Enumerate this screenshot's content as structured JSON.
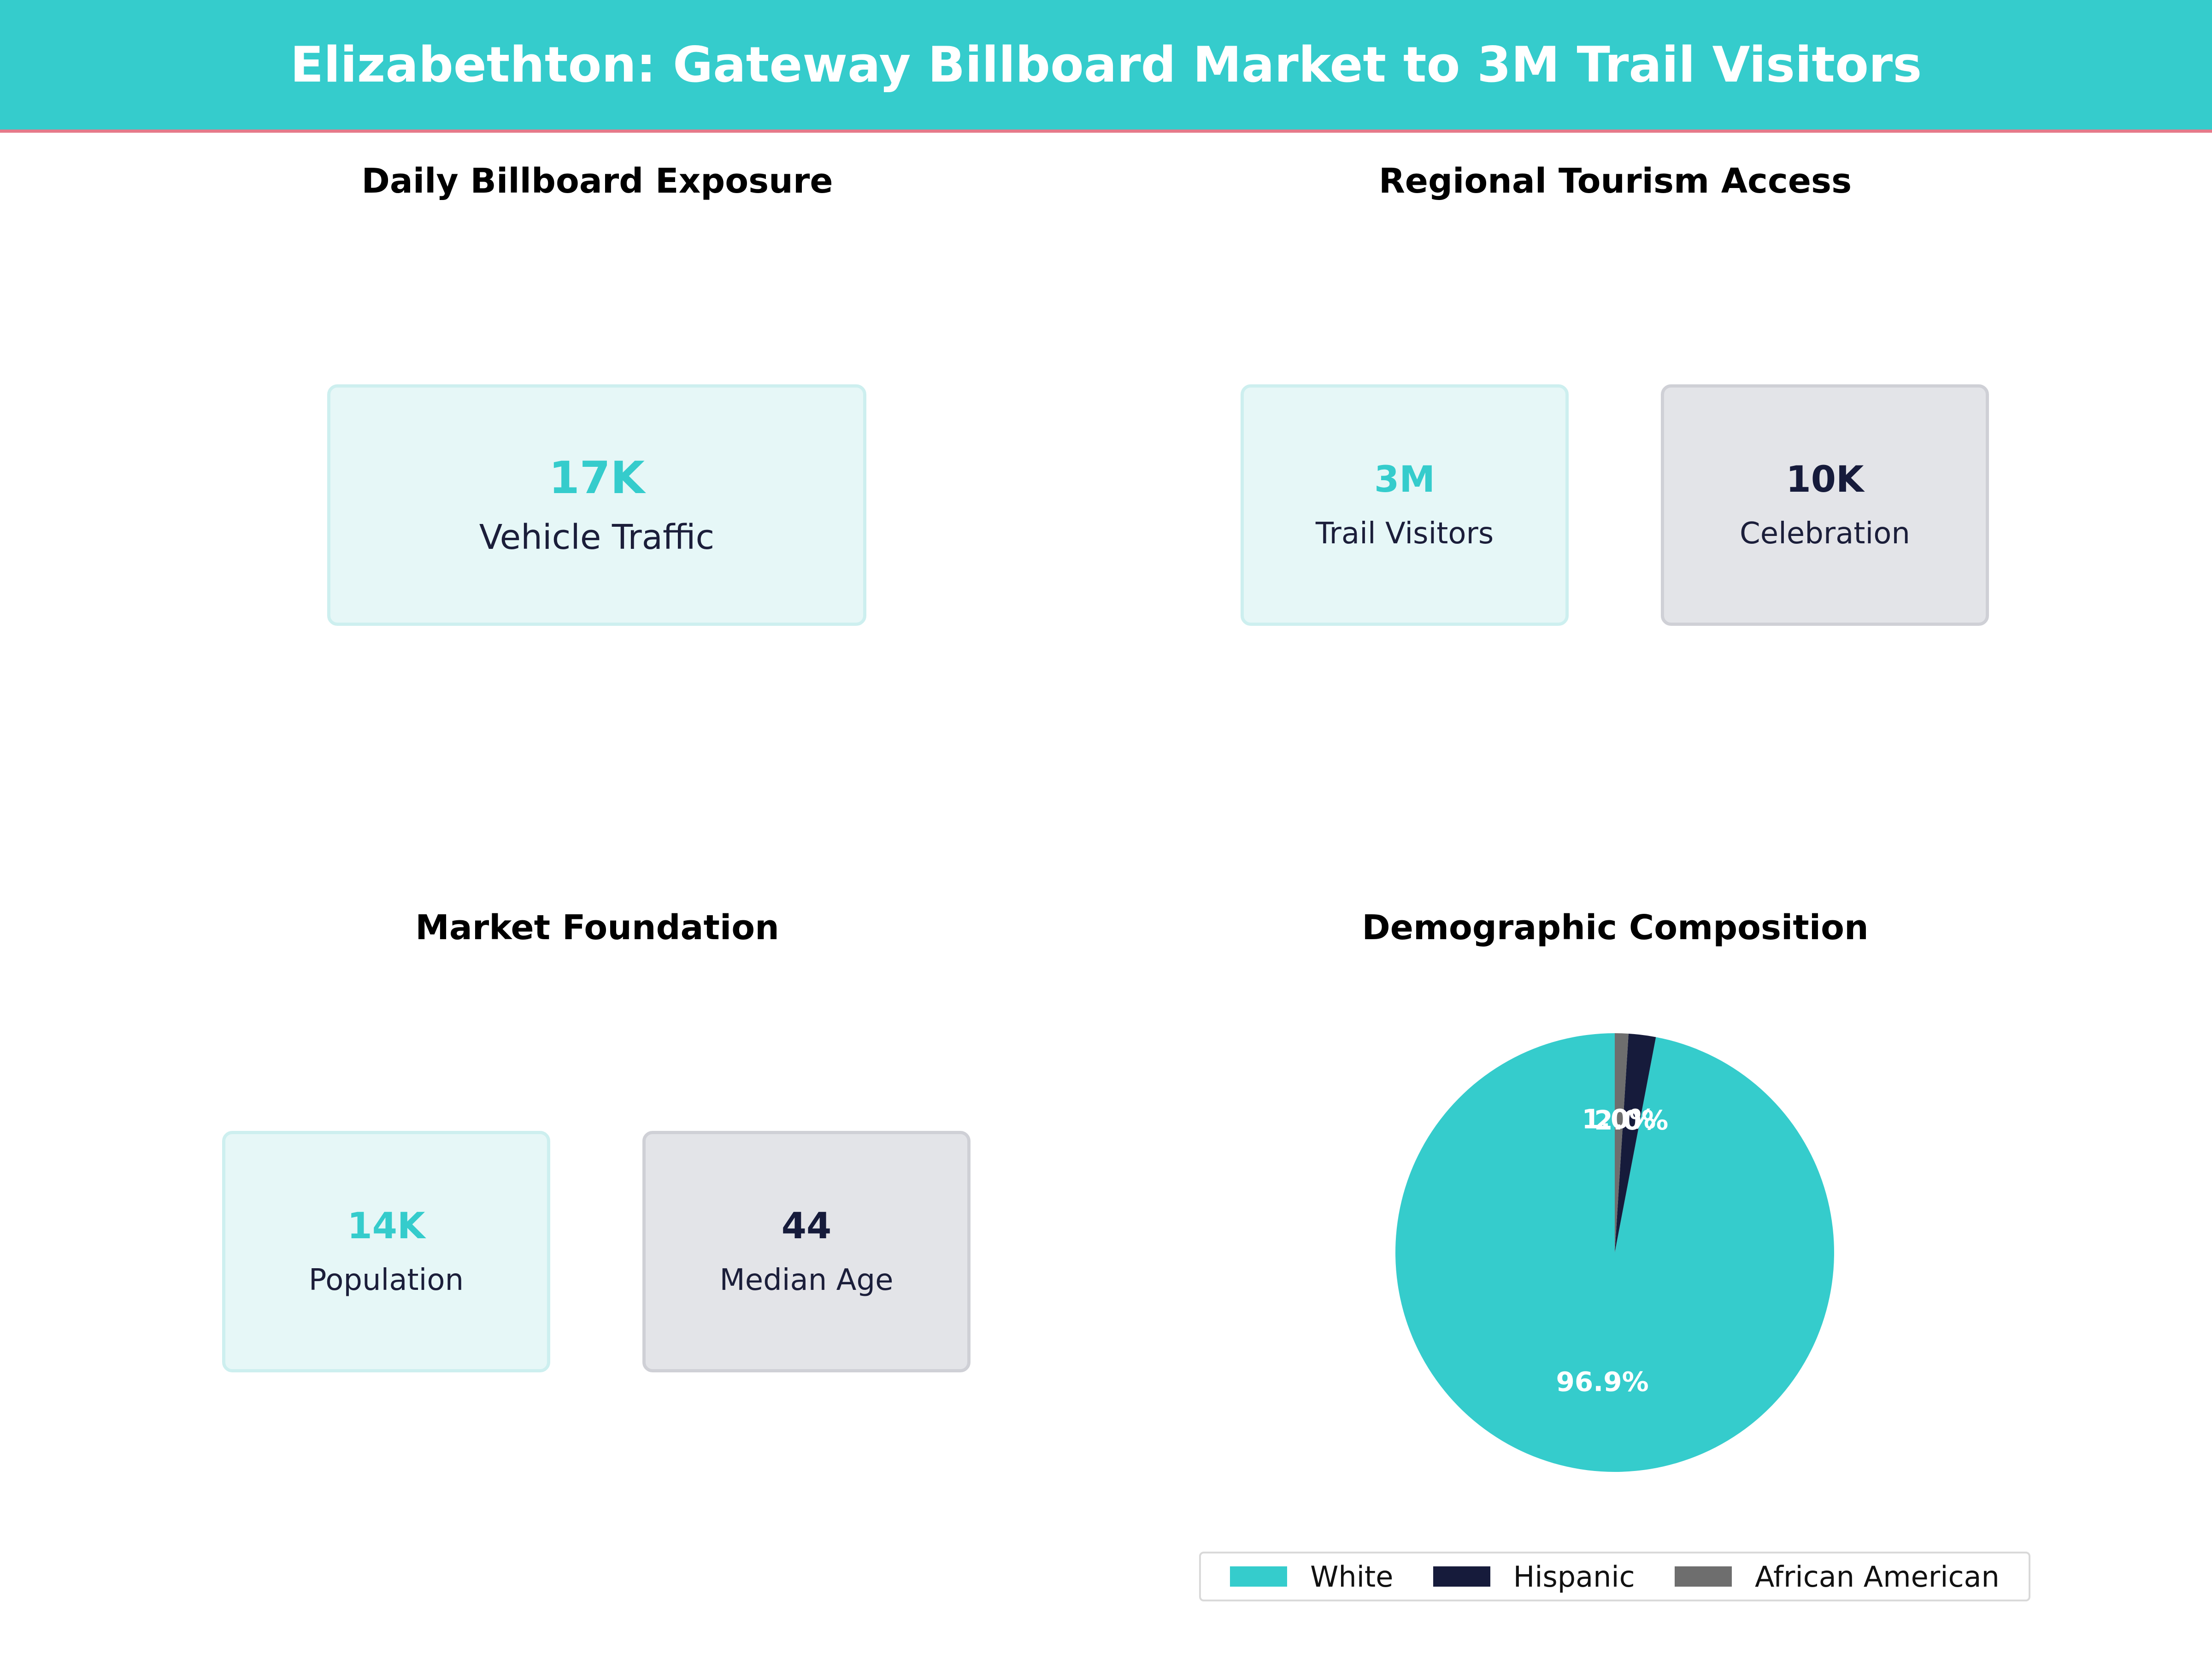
{
  "header": {
    "title": "Elizabethton: Gateway Billboard Market to 3M Trail Visitors"
  },
  "panels": {
    "exposure": {
      "title": "Daily Billboard Exposure",
      "cards": [
        {
          "value": "17K",
          "label": "Vehicle Traffic"
        }
      ]
    },
    "tourism": {
      "title": "Regional Tourism Access",
      "cards": [
        {
          "value": "3M",
          "label": "Trail Visitors"
        },
        {
          "value": "10K",
          "label": "Celebration"
        }
      ]
    },
    "foundation": {
      "title": "Market Foundation",
      "cards": [
        {
          "value": "14K",
          "label": "Population"
        },
        {
          "value": "44",
          "label": "Median Age"
        }
      ]
    },
    "demographics": {
      "title": "Demographic Composition"
    }
  },
  "colors": {
    "accent": "#35CCCC",
    "navy": "#161B3B",
    "gray": "#6E6E6E",
    "header_rule": "#E57A8A"
  },
  "chart_data": {
    "type": "pie",
    "title": "Demographic Composition",
    "categories": [
      "White",
      "Hispanic",
      "African American"
    ],
    "values": [
      96.9,
      2.0,
      1.0
    ],
    "data_labels": [
      "96.9%",
      "2.0%",
      "1.0%"
    ],
    "colors": [
      "#35CCCC",
      "#161B3B",
      "#6E6E6E"
    ],
    "legend": "bottom"
  }
}
